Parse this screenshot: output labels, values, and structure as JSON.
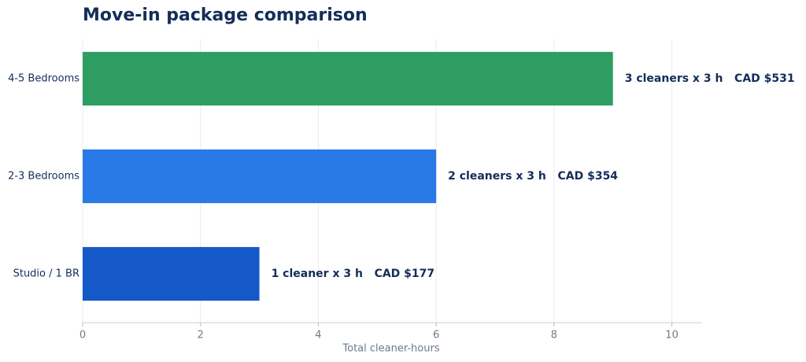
{
  "chart_data": {
    "type": "barh",
    "title": "Move-in package comparison",
    "categories": [
      "Studio / 1 BR",
      "2-3 Bedrooms",
      "4-5 Bedrooms"
    ],
    "values": [
      3,
      6,
      9
    ],
    "colors": [
      "#1558c8",
      "#2979e6",
      "#2e9e62"
    ],
    "annotations": [
      "1 cleaner x 3 h   CAD $177",
      "2 cleaners x 3 h   CAD $354",
      "3 cleaners x 3 h   CAD $531"
    ],
    "xlabel": "Total cleaner-hours",
    "xlim": [
      0,
      10.5
    ],
    "xticks": [
      0,
      2,
      4,
      6,
      8,
      10
    ],
    "grid": true
  }
}
